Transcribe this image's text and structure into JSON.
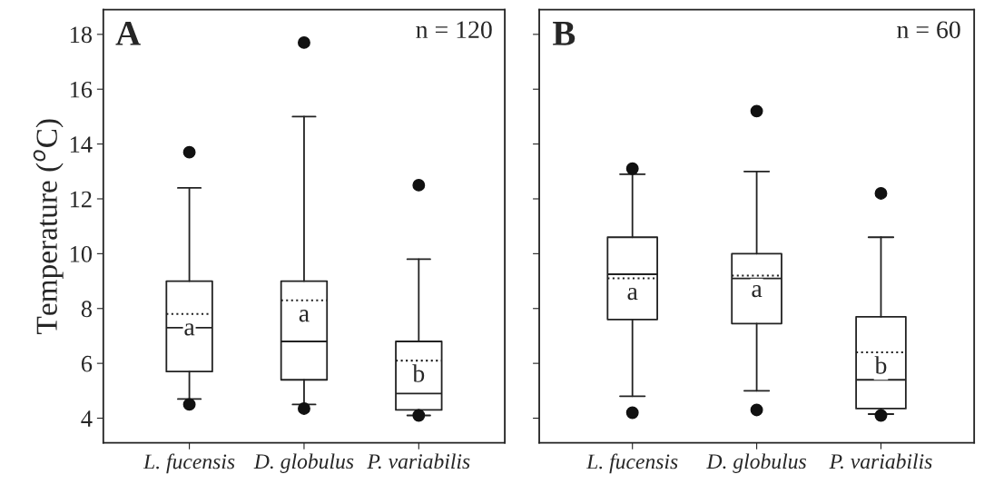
{
  "chart_data": [
    {
      "type": "box",
      "title": "A",
      "ylabel": "Temperature ($^{o}$C)",
      "categories": [
        "L. fucensis",
        "D. globulus",
        "P. variabilis"
      ],
      "ylim": [
        3.1,
        18.9
      ],
      "yticks": [
        4,
        6,
        8,
        10,
        12,
        14,
        16,
        18
      ],
      "boxes": [
        {
          "low": 4.7,
          "q1": 5.7,
          "median": 7.3,
          "q3": 9.0,
          "high": 12.4,
          "mean": 7.8,
          "outliers": [
            13.7,
            4.5
          ]
        },
        {
          "low": 4.5,
          "q1": 5.4,
          "median": 6.8,
          "q3": 9.0,
          "high": 15.0,
          "mean": 8.3,
          "outliers": [
            17.7,
            4.35
          ]
        },
        {
          "low": 4.1,
          "q1": 4.3,
          "median": 4.9,
          "q3": 6.8,
          "high": 9.8,
          "mean": 6.1,
          "outliers": [
            12.5,
            4.1
          ]
        }
      ],
      "annotations": [
        "n = 120",
        "a",
        "a",
        "b"
      ]
    },
    {
      "type": "box",
      "title": "B",
      "categories": [
        "L. fucensis",
        "D. globulus",
        "P. variabilis"
      ],
      "ylim": [
        3.1,
        18.9
      ],
      "yticks": [
        4,
        6,
        8,
        10,
        12,
        14,
        16,
        18
      ],
      "tick_labels": "x",
      "boxes": [
        {
          "low": 4.8,
          "q1": 7.6,
          "median": 9.25,
          "q3": 10.6,
          "high": 12.9,
          "mean": 9.1,
          "outliers": [
            13.1,
            4.2
          ]
        },
        {
          "low": 5.0,
          "q1": 7.45,
          "median": 9.1,
          "q3": 10.0,
          "high": 13.0,
          "mean": 9.2,
          "outliers": [
            15.2,
            4.3
          ]
        },
        {
          "low": 4.15,
          "q1": 4.35,
          "median": 5.4,
          "q3": 7.7,
          "high": 10.6,
          "mean": 6.4,
          "outliers": [
            12.2,
            4.1
          ]
        }
      ],
      "annotations": [
        "n = 60",
        "a",
        "a",
        "b"
      ]
    }
  ]
}
